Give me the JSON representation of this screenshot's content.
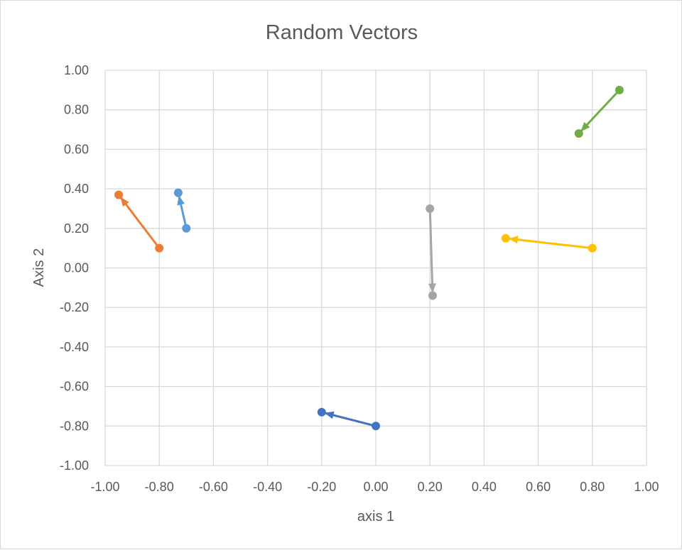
{
  "chart_data": {
    "type": "scatter",
    "title": "Random Vectors",
    "xlabel": "axis 1",
    "ylabel": "Axis 2",
    "xlim": [
      -1.0,
      1.0
    ],
    "ylim": [
      -1.0,
      1.0
    ],
    "x_ticks": [
      "-1.00",
      "-0.80",
      "-0.60",
      "-0.40",
      "-0.20",
      "0.00",
      "0.20",
      "0.40",
      "0.60",
      "0.80",
      "1.00"
    ],
    "y_ticks": [
      "1.00",
      "0.80",
      "0.60",
      "0.40",
      "0.20",
      "0.00",
      "-0.20",
      "-0.40",
      "-0.60",
      "-0.80",
      "-1.00"
    ],
    "grid": true,
    "legend": "none",
    "series": [
      {
        "color": "#4472c4",
        "x": [
          0.0,
          -0.2
        ],
        "y": [
          -0.8,
          -0.73
        ]
      },
      {
        "color": "#ed7d31",
        "x": [
          -0.8,
          -0.95
        ],
        "y": [
          0.1,
          0.37
        ]
      },
      {
        "color": "#a5a5a5",
        "x": [
          0.2,
          0.21
        ],
        "y": [
          0.3,
          -0.14
        ]
      },
      {
        "color": "#ffc000",
        "x": [
          0.8,
          0.48
        ],
        "y": [
          0.1,
          0.15
        ]
      },
      {
        "color": "#5b9bd5",
        "x": [
          -0.7,
          -0.73
        ],
        "y": [
          0.2,
          0.38
        ]
      },
      {
        "color": "#70ad47",
        "x": [
          0.9,
          0.75
        ],
        "y": [
          0.9,
          0.68
        ]
      }
    ]
  }
}
